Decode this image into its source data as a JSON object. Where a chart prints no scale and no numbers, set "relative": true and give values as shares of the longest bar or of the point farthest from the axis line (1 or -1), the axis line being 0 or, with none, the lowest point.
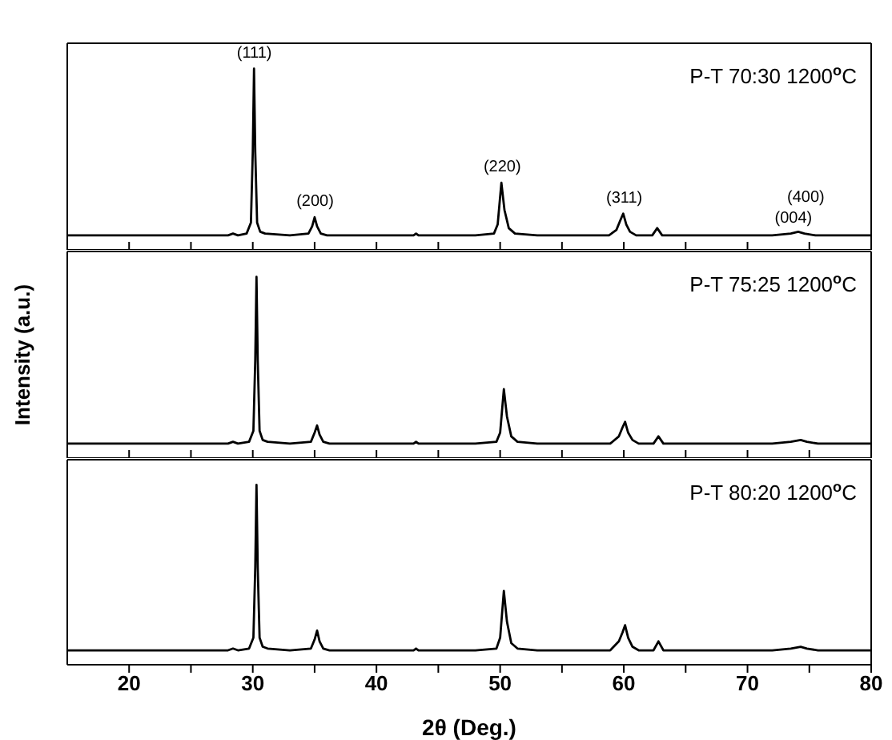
{
  "chart_data": [
    {
      "type": "line",
      "relative": true,
      "tick_labels": false,
      "xlim": [
        15,
        80
      ],
      "xticks": [
        {
          "value": 20,
          "label": null
        },
        {
          "value": 25,
          "label": null
        },
        {
          "value": 30,
          "label": null
        },
        {
          "value": 35,
          "label": null
        },
        {
          "value": 40,
          "label": null
        },
        {
          "value": 45,
          "label": null
        },
        {
          "value": 50,
          "label": null
        },
        {
          "value": 55,
          "label": null
        },
        {
          "value": 60,
          "label": null
        },
        {
          "value": 65,
          "label": null
        },
        {
          "value": 70,
          "label": null
        },
        {
          "value": 75,
          "label": null
        }
      ],
      "x": [
        15,
        28,
        28.4,
        28.8,
        29.5,
        29.85,
        30.0,
        30.1,
        30.2,
        30.35,
        30.6,
        31,
        33,
        34.5,
        34.8,
        35.0,
        35.2,
        35.5,
        36,
        43,
        43.2,
        43.4,
        48,
        49.5,
        49.8,
        50.1,
        50.35,
        50.7,
        51.2,
        53,
        58.8,
        59.4,
        59.7,
        59.95,
        60.2,
        60.5,
        61,
        62.3,
        62.7,
        63.1,
        64,
        72,
        73.5,
        74.1,
        74.6,
        75.5,
        80
      ],
      "series": [
        {
          "color": "#000000",
          "values": [
            0.08,
            0.08,
            0.09,
            0.08,
            0.09,
            0.15,
            0.54,
            1,
            0.54,
            0.15,
            0.1,
            0.09,
            0.08,
            0.09,
            0.13,
            0.18,
            0.13,
            0.09,
            0.08,
            0.08,
            0.09,
            0.08,
            0.08,
            0.09,
            0.14,
            0.37,
            0.22,
            0.12,
            0.09,
            0.08,
            0.08,
            0.11,
            0.16,
            0.2,
            0.14,
            0.1,
            0.08,
            0.08,
            0.12,
            0.08,
            0.08,
            0.08,
            0.09,
            0.1,
            0.09,
            0.08,
            0.08
          ]
        }
      ],
      "annotations": [
        "P-T 70:30 1200$^{o}$C",
        {
          "text": "(111)",
          "x": 30.1,
          "y": 1
        },
        {
          "text": "(200)",
          "x": 35.0,
          "y": 0.18
        },
        {
          "text": "(220)",
          "x": 50.1,
          "y": 0.37
        },
        {
          "text": "(311)",
          "x": 59.95,
          "y": 0.2
        },
        {
          "text": "(004)",
          "x": 73.6,
          "y": 0.09
        },
        {
          "text": "(400)",
          "x": 74.6,
          "y": 0.09
        }
      ]
    },
    {
      "type": "line",
      "relative": true,
      "tick_labels": false,
      "xlim": [
        15,
        80
      ],
      "ylabel": "Intensity (a.u.)",
      "xticks": [
        {
          "value": 20,
          "label": null
        },
        {
          "value": 25,
          "label": null
        },
        {
          "value": 30,
          "label": null
        },
        {
          "value": 35,
          "label": null
        },
        {
          "value": 40,
          "label": null
        },
        {
          "value": 45,
          "label": null
        },
        {
          "value": 50,
          "label": null
        },
        {
          "value": 55,
          "label": null
        },
        {
          "value": 60,
          "label": null
        },
        {
          "value": 65,
          "label": null
        },
        {
          "value": 70,
          "label": null
        },
        {
          "value": 75,
          "label": null
        }
      ],
      "x": [
        15,
        28,
        28.4,
        28.8,
        29.7,
        30.05,
        30.2,
        30.3,
        30.4,
        30.55,
        30.8,
        31.2,
        33,
        34.7,
        35.0,
        35.2,
        35.4,
        35.7,
        36.2,
        43,
        43.2,
        43.4,
        48,
        49.7,
        50.0,
        50.3,
        50.55,
        50.9,
        51.4,
        53,
        58.9,
        59.6,
        59.9,
        60.1,
        60.35,
        60.7,
        61.2,
        62.4,
        62.8,
        63.2,
        64,
        72,
        73.5,
        74.3,
        74.8,
        75.7,
        80
      ],
      "series": [
        {
          "color": "#000000",
          "values": [
            0.08,
            0.08,
            0.09,
            0.08,
            0.09,
            0.15,
            0.54,
            1,
            0.54,
            0.15,
            0.1,
            0.09,
            0.08,
            0.09,
            0.14,
            0.18,
            0.13,
            0.09,
            0.08,
            0.08,
            0.09,
            0.08,
            0.08,
            0.09,
            0.14,
            0.38,
            0.23,
            0.12,
            0.09,
            0.08,
            0.08,
            0.12,
            0.17,
            0.2,
            0.14,
            0.1,
            0.08,
            0.08,
            0.12,
            0.08,
            0.08,
            0.08,
            0.09,
            0.1,
            0.09,
            0.08,
            0.08
          ]
        }
      ],
      "annotations": [
        "P-T 75:25 1200$^{o}$C"
      ]
    },
    {
      "type": "line",
      "relative": true,
      "tick_labels": "x",
      "xlim": [
        15,
        80
      ],
      "xlabel": "2θ (Deg.)",
      "xticks": [
        20,
        {
          "value": 25,
          "label": null
        },
        30,
        {
          "value": 35,
          "label": null
        },
        40,
        {
          "value": 45,
          "label": null
        },
        50,
        {
          "value": 55,
          "label": null
        },
        60,
        {
          "value": 65,
          "label": null
        },
        70,
        {
          "value": 75,
          "label": null
        },
        80
      ],
      "x": [
        15,
        28,
        28.4,
        28.8,
        29.7,
        30.05,
        30.2,
        30.3,
        30.4,
        30.55,
        30.8,
        31.2,
        33,
        34.7,
        35.0,
        35.2,
        35.4,
        35.7,
        36.2,
        43,
        43.2,
        43.4,
        48,
        49.7,
        50.0,
        50.3,
        50.55,
        50.9,
        51.4,
        53,
        58.9,
        59.6,
        59.9,
        60.1,
        60.35,
        60.7,
        61.2,
        62.4,
        62.8,
        63.2,
        64,
        72,
        73.5,
        74.3,
        74.8,
        75.7,
        80
      ],
      "series": [
        {
          "color": "#000000",
          "values": [
            0.08,
            0.08,
            0.09,
            0.08,
            0.09,
            0.15,
            0.54,
            1,
            0.54,
            0.15,
            0.1,
            0.09,
            0.08,
            0.09,
            0.14,
            0.19,
            0.13,
            0.09,
            0.08,
            0.08,
            0.09,
            0.08,
            0.08,
            0.09,
            0.15,
            0.41,
            0.24,
            0.12,
            0.09,
            0.08,
            0.08,
            0.13,
            0.18,
            0.22,
            0.15,
            0.1,
            0.08,
            0.08,
            0.13,
            0.08,
            0.08,
            0.08,
            0.09,
            0.1,
            0.09,
            0.08,
            0.08
          ]
        }
      ],
      "annotations": [
        "P-T 80:20 1200$^{o}$C"
      ]
    }
  ]
}
